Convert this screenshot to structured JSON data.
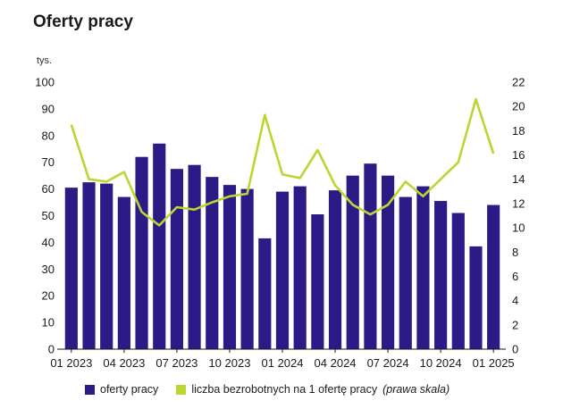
{
  "title": "Oferty pracy",
  "unit_label": "tys.",
  "legend": {
    "bars_label": "oferty pracy",
    "line_label": "liczba bezrobotnych na 1 ofertę pracy",
    "line_note": "(prawa skala)"
  },
  "colors": {
    "bars": "#2e1a87",
    "line": "#bdd531",
    "axis": "#1a1a1a"
  },
  "chart_data": {
    "type": "bar",
    "categories": [
      "01 2023",
      "02 2023",
      "03 2023",
      "04 2023",
      "05 2023",
      "06 2023",
      "07 2023",
      "08 2023",
      "09 2023",
      "10 2023",
      "11 2023",
      "12 2023",
      "01 2024",
      "02 2024",
      "03 2024",
      "04 2024",
      "05 2024",
      "06 2024",
      "07 2024",
      "08 2024",
      "09 2024",
      "10 2024",
      "11 2024",
      "12 2024",
      "01 2025"
    ],
    "x_tick_labels": [
      "01 2023",
      "",
      "",
      "04 2023",
      "",
      "",
      "07 2023",
      "",
      "",
      "10 2023",
      "",
      "",
      "01 2024",
      "",
      "",
      "04 2024",
      "",
      "",
      "07 2024",
      "",
      "",
      "10 2024",
      "",
      "",
      "01 2025"
    ],
    "series": [
      {
        "name": "oferty pracy",
        "type": "bar",
        "axis": "left",
        "values": [
          60.5,
          62.5,
          62,
          57,
          72,
          77,
          67.5,
          69,
          64.5,
          61.5,
          60,
          41.5,
          59,
          61,
          50.5,
          59.5,
          65,
          69.5,
          65,
          57,
          61,
          55.5,
          51,
          38.5,
          54
        ]
      },
      {
        "name": "liczba bezrobotnych na 1 ofertę pracy (prawa skala)",
        "type": "line",
        "axis": "right",
        "values": [
          18.5,
          14,
          13.8,
          14.6,
          11.3,
          10.2,
          11.7,
          11.5,
          12.1,
          12.6,
          12.8,
          19.3,
          14.4,
          14.1,
          16.4,
          13.5,
          11.9,
          11.1,
          11.9,
          13.8,
          12.6,
          14,
          15.4,
          20.6,
          16.1
        ]
      }
    ],
    "ylim_left": [
      0,
      100
    ],
    "yticks_left": [
      "0",
      "10",
      "20",
      "30",
      "40",
      "50",
      "60",
      "70",
      "80",
      "90",
      "100"
    ],
    "ylim_right": [
      0,
      22
    ],
    "yticks_right": [
      "0",
      "2",
      "4",
      "6",
      "8",
      "10",
      "12",
      "14",
      "16",
      "18",
      "20",
      "22"
    ],
    "grid": false,
    "legend_position": "bottom"
  }
}
